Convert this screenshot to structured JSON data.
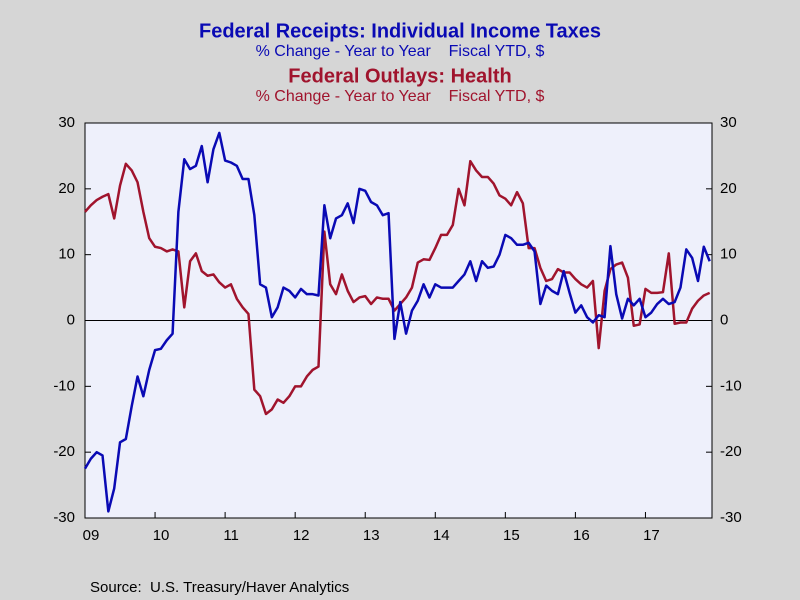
{
  "chart_data": {
    "type": "line",
    "source": "Source:  U.S. Treasury/Haver Analytics",
    "x": [
      2009,
      2009.083,
      2009.167,
      2009.25,
      2009.333,
      2009.417,
      2009.5,
      2009.583,
      2009.667,
      2009.75,
      2009.833,
      2009.917,
      2010,
      2010.083,
      2010.167,
      2010.25,
      2010.333,
      2010.417,
      2010.5,
      2010.583,
      2010.667,
      2010.75,
      2010.833,
      2010.917,
      2011,
      2011.083,
      2011.167,
      2011.25,
      2011.333,
      2011.417,
      2011.5,
      2011.583,
      2011.667,
      2011.75,
      2011.833,
      2011.917,
      2012,
      2012.083,
      2012.167,
      2012.25,
      2012.333,
      2012.417,
      2012.5,
      2012.583,
      2012.667,
      2012.75,
      2012.833,
      2012.917,
      2013,
      2013.083,
      2013.167,
      2013.25,
      2013.333,
      2013.417,
      2013.5,
      2013.583,
      2013.667,
      2013.75,
      2013.833,
      2013.917,
      2014,
      2014.083,
      2014.167,
      2014.25,
      2014.333,
      2014.417,
      2014.5,
      2014.583,
      2014.667,
      2014.75,
      2014.833,
      2014.917,
      2015,
      2015.083,
      2015.167,
      2015.25,
      2015.333,
      2015.417,
      2015.5,
      2015.583,
      2015.667,
      2015.75,
      2015.833,
      2015.917,
      2016,
      2016.083,
      2016.167,
      2016.25,
      2016.333,
      2016.417,
      2016.5,
      2016.583,
      2016.667,
      2016.75,
      2016.833,
      2016.917,
      2017,
      2017.083,
      2017.167,
      2017.25,
      2017.333,
      2017.417,
      2017.5,
      2017.583,
      2017.667,
      2017.75,
      2017.833,
      2017.917
    ],
    "series": [
      {
        "name": "Federal Receipts: Individual Income Taxes",
        "description": "% Change - Year to Year    Fiscal YTD, $",
        "color": "#0a0ab4",
        "values": [
          -22.5,
          -21,
          -20,
          -20.5,
          -29,
          -25.5,
          -18.5,
          -18,
          -13,
          -8.5,
          -11.5,
          -7.5,
          -4.5,
          -4.3,
          -3,
          -2,
          16.5,
          24.5,
          23,
          23.5,
          26.5,
          21,
          26,
          28.5,
          24.3,
          24,
          23.5,
          21.5,
          21.5,
          16,
          5.5,
          5,
          0.5,
          2,
          5,
          4.5,
          3.5,
          4.8,
          4,
          4,
          3.8,
          17.5,
          12.5,
          15.5,
          16,
          17.8,
          14.8,
          20,
          19.7,
          18,
          17.5,
          16,
          16.3,
          -2.8,
          2.8,
          -2,
          1.5,
          3,
          5.5,
          3.5,
          5.5,
          5,
          5,
          5,
          6,
          7,
          9,
          6,
          9,
          8,
          8.2,
          10,
          13,
          12.5,
          11.5,
          11.5,
          11.8,
          10.5,
          2.5,
          5.3,
          4.5,
          4,
          7.5,
          4.2,
          1.2,
          2.3,
          0.5,
          -0.3,
          0.8,
          0.5,
          11.3,
          4,
          0.3,
          3.3,
          2.3,
          3.3,
          0.5,
          1.2,
          2.5,
          3.3,
          2.5,
          2.8,
          5,
          10.8,
          9.5,
          6,
          11.2,
          9
        ]
      },
      {
        "name": "Federal Outlays: Health",
        "description": "% Change - Year to Year    Fiscal YTD, $",
        "color": "#a0142d",
        "values": [
          16.5,
          17.5,
          18.3,
          18.8,
          19.2,
          15.5,
          20.5,
          23.8,
          22.8,
          21,
          16.5,
          12.5,
          11.2,
          11,
          10.5,
          10.8,
          10.5,
          2,
          9,
          10.2,
          7.5,
          6.8,
          7,
          5.8,
          5,
          5.5,
          3.3,
          2,
          1,
          -10.5,
          -11.5,
          -14.2,
          -13.5,
          -12,
          -12.5,
          -11.5,
          -10,
          -10,
          -8.5,
          -7.5,
          -7,
          13.5,
          5.5,
          4,
          7,
          4.5,
          2.8,
          3.5,
          3.7,
          2.5,
          3.5,
          3.3,
          3.3,
          1.5,
          2.5,
          3.5,
          5,
          8.8,
          9.3,
          9.2,
          11,
          13,
          13,
          14.5,
          20,
          17.5,
          24.2,
          22.8,
          21.8,
          21.8,
          20.8,
          19,
          18.5,
          17.5,
          19.5,
          17.8,
          11,
          11,
          8,
          6,
          6.3,
          7.8,
          7.3,
          7.3,
          6.3,
          5.5,
          5,
          6,
          -4.2,
          4.5,
          7.8,
          8.5,
          8.8,
          6.5,
          -0.8,
          -0.6,
          4.8,
          4.2,
          4.2,
          4.3,
          10.2,
          -0.5,
          -0.3,
          -0.3,
          1.8,
          3,
          3.8,
          4.2
        ]
      }
    ],
    "xlim": [
      2009,
      2017.95
    ],
    "xticks": [
      {
        "value": 2009,
        "label": "09"
      },
      {
        "value": 2010,
        "label": "10"
      },
      {
        "value": 2011,
        "label": "11"
      },
      {
        "value": 2012,
        "label": "12"
      },
      {
        "value": 2013,
        "label": "13"
      },
      {
        "value": 2014,
        "label": "14"
      },
      {
        "value": 2015,
        "label": "15"
      },
      {
        "value": 2016,
        "label": "16"
      },
      {
        "value": 2017,
        "label": "17"
      }
    ],
    "ylim": [
      -30,
      30
    ],
    "yticks": [
      -30,
      -20,
      -10,
      0,
      10,
      20,
      30
    ],
    "y2lim": [
      -30,
      30
    ],
    "y2ticks": [
      -30,
      -20,
      -10,
      0,
      10,
      20,
      30
    ],
    "zero_line": true
  }
}
